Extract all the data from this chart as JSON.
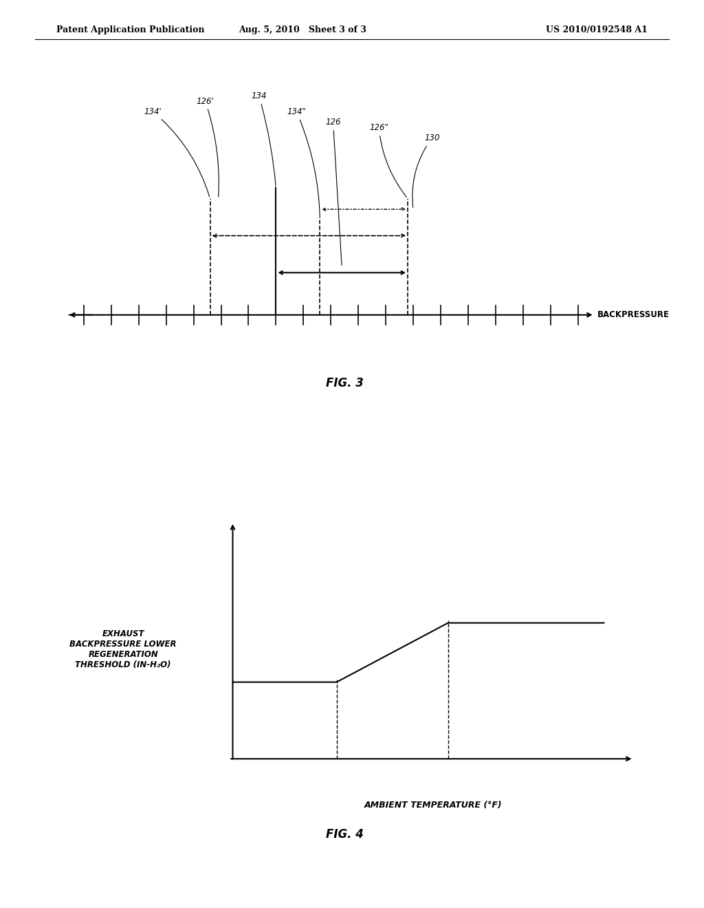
{
  "header_left": "Patent Application Publication",
  "header_mid": "Aug. 5, 2010   Sheet 3 of 3",
  "header_right": "US 2010/0192548 A1",
  "fig3_title": "FIG. 3",
  "fig4_title": "FIG. 4",
  "backpressure_label": "BACKPRESSURE",
  "fig4_ylabel": "EXHAUST\nBACKPRESSURE LOWER\nREGENERATION\nTHRESHOLD (IN-H₂O)",
  "fig4_xlabel": "AMBIENT TEMPERATURE (°F)",
  "bg_color": "#ffffff",
  "text_color": "#000000"
}
